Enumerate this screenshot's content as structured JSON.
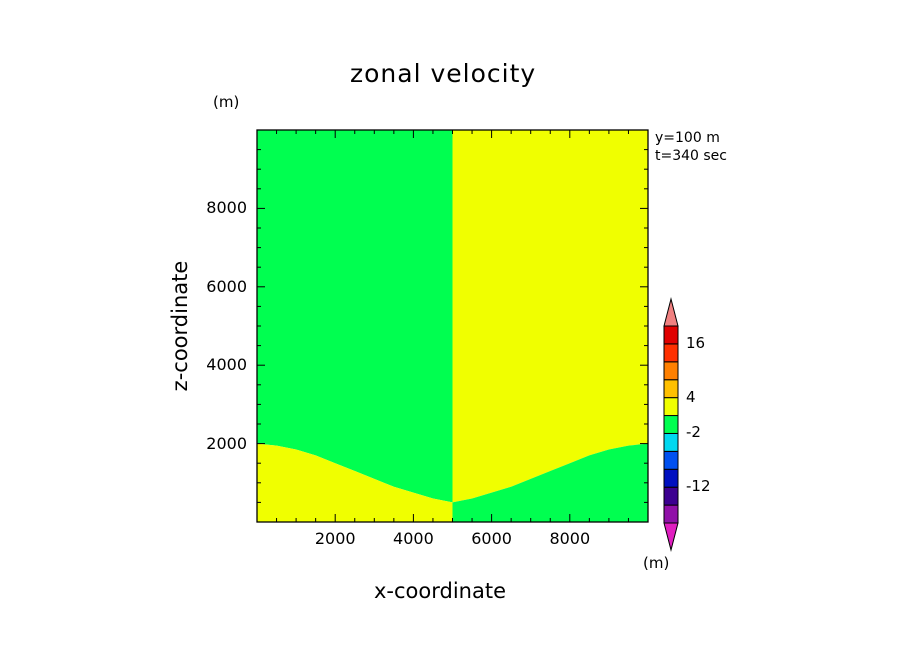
{
  "chart_data": {
    "type": "heatmap",
    "title": "zonal velocity",
    "xlabel": "x-coordinate",
    "ylabel": "z-coordinate",
    "x_unit": "(m)",
    "y_unit": "(m)",
    "annotation_y": "y=100 m",
    "annotation_t": "t=340 sec",
    "xlim": [
      0,
      10000
    ],
    "ylim": [
      0,
      10000
    ],
    "xticks": [
      2000,
      4000,
      6000,
      8000
    ],
    "xtick_labels": [
      "2000",
      "4000",
      "6000",
      "8000"
    ],
    "yticks": [
      2000,
      4000,
      6000,
      8000
    ],
    "ytick_labels": [
      "2000",
      "4000",
      "6000",
      "8000"
    ],
    "fields": {
      "upper_left": {
        "value_range": "-2 to 0",
        "color": "#00ff50"
      },
      "upper_right": {
        "value_range": "0 to 4",
        "color": "#f0ff00"
      },
      "lower_left": {
        "value_range": "0 to 4",
        "color": "#f0ff00"
      },
      "lower_right": {
        "value_range": "-2 to 0",
        "color": "#00ff50"
      }
    },
    "interface": {
      "x": [
        0,
        500,
        1000,
        1500,
        2000,
        2500,
        3000,
        3500,
        4000,
        4500,
        5000,
        5500,
        6000,
        6500,
        7000,
        7500,
        8000,
        8500,
        9000,
        9500,
        10000
      ],
      "z": [
        2000,
        1950,
        1850,
        1700,
        1500,
        1300,
        1100,
        900,
        750,
        600,
        500,
        600,
        750,
        900,
        1100,
        1300,
        1500,
        1700,
        1850,
        1950,
        2000
      ]
    },
    "colorbar": {
      "colors": [
        "#e01ec0",
        "#9010a8",
        "#3c0090",
        "#0010c0",
        "#0050f0",
        "#00d8f0",
        "#00ff50",
        "#f0ff00",
        "#ffc000",
        "#ff8000",
        "#ff3000",
        "#e00000",
        "#f08080"
      ],
      "levels": [
        "-20",
        "-16",
        "-12",
        "-8",
        "-4",
        "-2",
        "0",
        "4",
        "8",
        "12",
        "16",
        "20"
      ],
      "shown_labels": [
        "16",
        "4",
        "-2",
        "-12"
      ],
      "unit": "(m)"
    }
  }
}
